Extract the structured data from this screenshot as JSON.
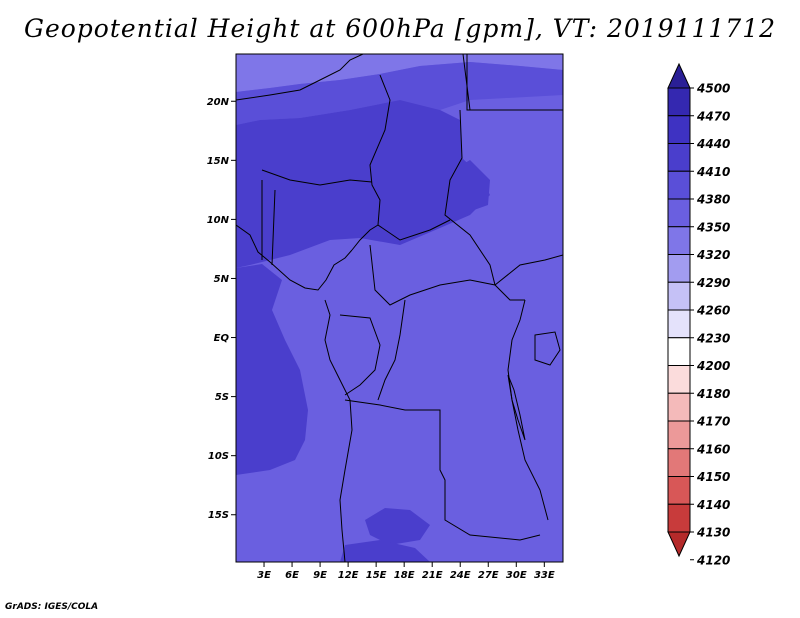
{
  "title": "Geopotential Height at 600hPa [gpm], VT: 2019111712",
  "credit": "GrADS: IGES/COLA",
  "map": {
    "lat_range": [
      -19,
      24
    ],
    "lon_range": [
      0,
      35
    ],
    "lat_ticks": [
      {
        "lat": 20,
        "label": "20N"
      },
      {
        "lat": 15,
        "label": "15N"
      },
      {
        "lat": 10,
        "label": "10N"
      },
      {
        "lat": 5,
        "label": "5N"
      },
      {
        "lat": 0,
        "label": "EQ"
      },
      {
        "lat": -5,
        "label": "5S"
      },
      {
        "lat": -10,
        "label": "10S"
      },
      {
        "lat": -15,
        "label": "15S"
      }
    ],
    "lon_ticks": [
      {
        "lon": 3,
        "label": "3E"
      },
      {
        "lon": 6,
        "label": "6E"
      },
      {
        "lon": 9,
        "label": "9E"
      },
      {
        "lon": 12,
        "label": "12E"
      },
      {
        "lon": 15,
        "label": "15E"
      },
      {
        "lon": 18,
        "label": "18E"
      },
      {
        "lon": 21,
        "label": "21E"
      },
      {
        "lon": 24,
        "label": "24E"
      },
      {
        "lon": 27,
        "label": "27E"
      },
      {
        "lon": 30,
        "label": "30E"
      },
      {
        "lon": 33,
        "label": "33E"
      }
    ]
  },
  "colorbar": {
    "levels": [
      "4500",
      "4470",
      "4440",
      "4410",
      "4380",
      "4350",
      "4320",
      "4290",
      "4260",
      "4230",
      "4200",
      "4180",
      "4170",
      "4160",
      "4150",
      "4140",
      "4130",
      "4120"
    ],
    "colors": [
      "#2a1f96",
      "#3428b0",
      "#3e32c2",
      "#4a3ecc",
      "#5a4fd8",
      "#6a5fe0",
      "#7f76e8",
      "#a29cf0",
      "#c5c1f6",
      "#e4e2fb",
      "#ffffff",
      "#fbdcdc",
      "#f4baba",
      "#ec9999",
      "#e27878",
      "#d85757",
      "#c83b3b",
      "#b42a2a"
    ]
  }
}
